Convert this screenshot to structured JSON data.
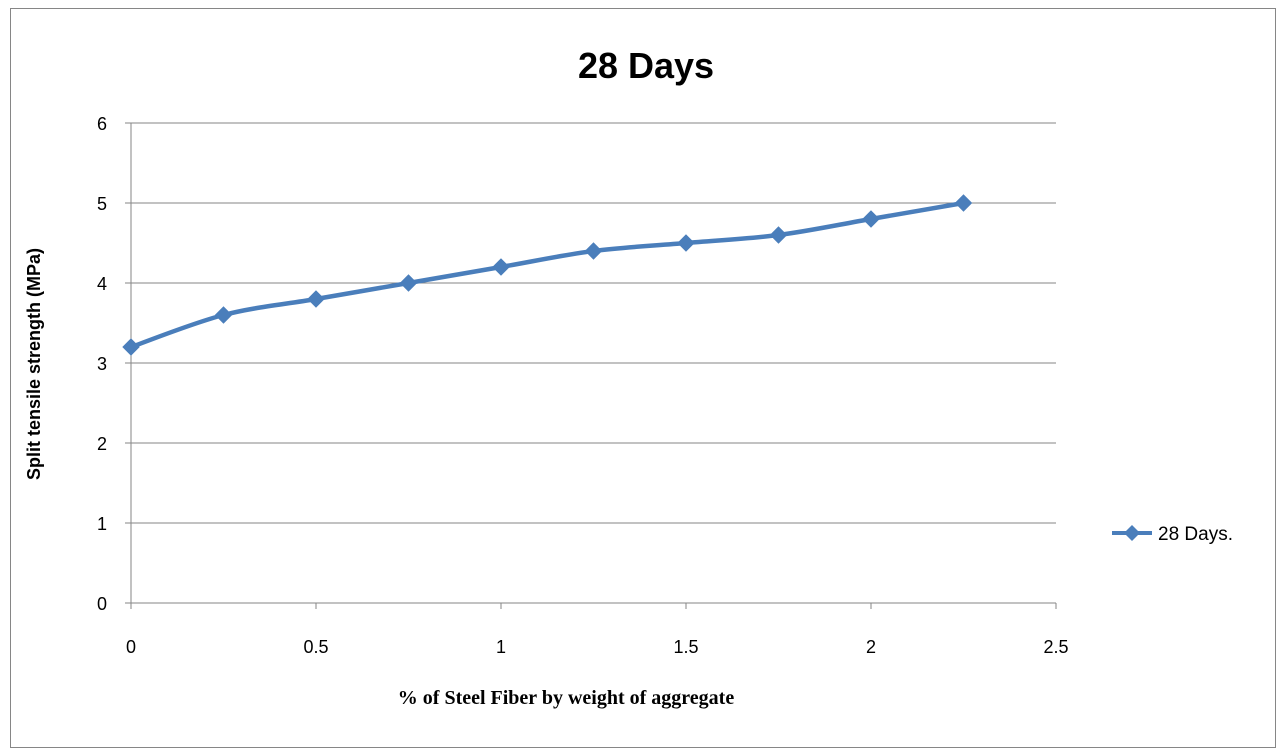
{
  "chart_data": {
    "type": "line",
    "title": "28 Days",
    "xlabel": "% of Steel Fiber by weight of aggregate",
    "ylabel": "Split tensile strength (MPa)",
    "xlim": [
      0,
      2.5
    ],
    "ylim": [
      0,
      6
    ],
    "x_ticks": [
      "0",
      "0.5",
      "1",
      "1.5",
      "2",
      "2.5"
    ],
    "y_ticks": [
      "0",
      "1",
      "2",
      "3",
      "4",
      "5",
      "6"
    ],
    "grid": "horizontal",
    "legend_position": "right",
    "smooth": true,
    "series": [
      {
        "name": "28 Days.",
        "color": "#4a7ebb",
        "marker": "diamond",
        "x": [
          0,
          0.25,
          0.5,
          0.75,
          1,
          1.25,
          1.5,
          1.75,
          2,
          2.25
        ],
        "y": [
          3.2,
          3.6,
          3.8,
          4.0,
          4.2,
          4.4,
          4.5,
          4.6,
          4.8,
          5.0
        ]
      }
    ]
  }
}
